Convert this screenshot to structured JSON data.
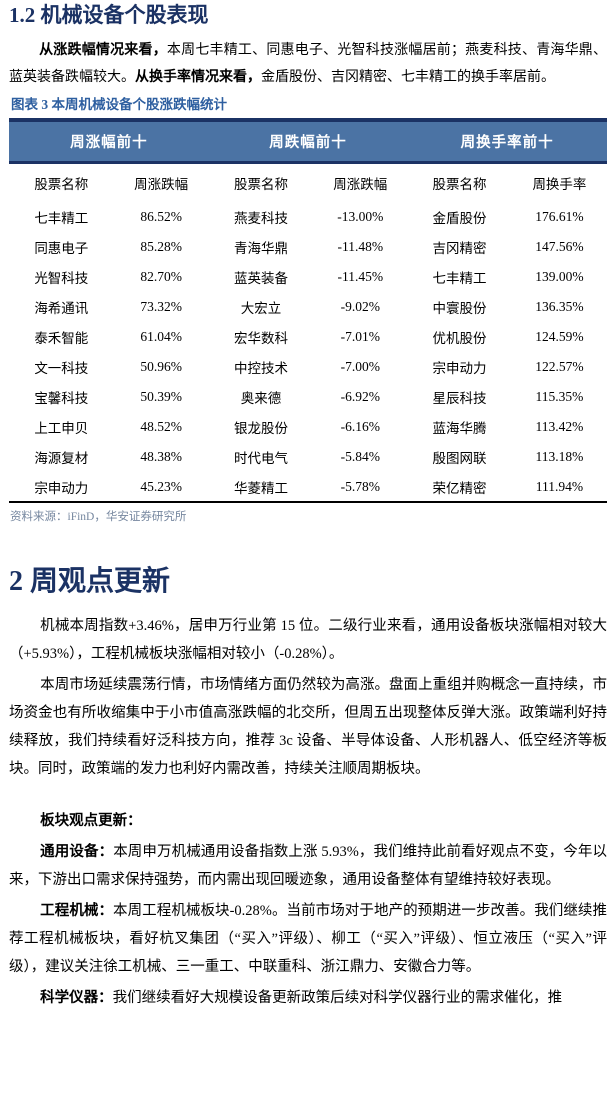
{
  "colors": {
    "heading_navy": "#1b3264",
    "table_header_bg": "#4b73a4",
    "table_header_text": "#ffffff",
    "caption_blue": "#2e5fa0",
    "source_text": "#76879f",
    "body_text": "#000000"
  },
  "section1": {
    "heading": "1.2 机械设备个股表现",
    "para": {
      "bold1": "从涨跌幅情况来看，",
      "text1": "本周七丰精工、同惠电子、光智科技涨幅居前；燕麦科技、青海华鼎、蓝英装备跌幅较大。",
      "bold2": "从换手率情况来看，",
      "text2": "金盾股份、吉冈精密、七丰精工的换手率居前。"
    }
  },
  "figure": {
    "caption": "图表 3 本周机械设备个股涨跌幅统计",
    "source": "资料来源：iFinD，华安证券研究所"
  },
  "table": {
    "group_headers": [
      "周涨幅前十",
      "周跌幅前十",
      "周换手率前十"
    ],
    "col_headers": [
      "股票名称",
      "周涨跌幅",
      "股票名称",
      "周涨跌幅",
      "股票名称",
      "周换手率"
    ],
    "rows": [
      [
        "七丰精工",
        "86.52%",
        "燕麦科技",
        "-13.00%",
        "金盾股份",
        "176.61%"
      ],
      [
        "同惠电子",
        "85.28%",
        "青海华鼎",
        "-11.48%",
        "吉冈精密",
        "147.56%"
      ],
      [
        "光智科技",
        "82.70%",
        "蓝英装备",
        "-11.45%",
        "七丰精工",
        "139.00%"
      ],
      [
        "海希通讯",
        "73.32%",
        "大宏立",
        "-9.02%",
        "中寰股份",
        "136.35%"
      ],
      [
        "泰禾智能",
        "61.04%",
        "宏华数科",
        "-7.01%",
        "优机股份",
        "124.59%"
      ],
      [
        "文一科技",
        "50.96%",
        "中控技术",
        "-7.00%",
        "宗申动力",
        "122.57%"
      ],
      [
        "宝馨科技",
        "50.39%",
        "奥来德",
        "-6.92%",
        "星辰科技",
        "115.35%"
      ],
      [
        "上工申贝",
        "48.52%",
        "银龙股份",
        "-6.16%",
        "蓝海华腾",
        "113.42%"
      ],
      [
        "海源复材",
        "48.38%",
        "时代电气",
        "-5.84%",
        "殷图网联",
        "113.18%"
      ],
      [
        "宗申动力",
        "45.23%",
        "华菱精工",
        "-5.78%",
        "荣亿精密",
        "111.94%"
      ]
    ]
  },
  "section2": {
    "heading": "2 周观点更新",
    "p1": "机械本周指数+3.46%，居申万行业第 15 位。二级行业来看，通用设备板块涨幅相对较大（+5.93%），工程机械板块涨幅相对较小（-0.28%）。",
    "p2": "本周市场延续震荡行情，市场情绪方面仍然较为高涨。盘面上重组并购概念一直持续，市场资金也有所收缩集中于小市值高涨跌幅的北交所，但周五出现整体反弹大涨。政策端利好持续释放，我们持续看好泛科技方向，推荐 3c 设备、半导体设备、人形机器人、低空经济等板块。同时，政策端的发力也利好内需改善，持续关注顺周期板块。",
    "subhead": "板块观点更新：",
    "general_equipment": {
      "lead": "通用设备：",
      "text": "本周申万机械通用设备指数上涨 5.93%，我们维持此前看好观点不变，今年以来，下游出口需求保持强势，而内需出现回暖迹象，通用设备整体有望维持较好表现。"
    },
    "construction_machinery": {
      "lead": "工程机械：",
      "text": "本周工程机械板块-0.28%。当前市场对于地产的预期进一步改善。我们继续推荐工程机械板块，看好杭叉集团（“买入”评级）、柳工（“买入”评级）、恒立液压（“买入”评级），建议关注徐工机械、三一重工、中联重科、浙江鼎力、安徽合力等。"
    },
    "scientific_instruments": {
      "lead": "科学仪器：",
      "text": "我们继续看好大规模设备更新政策后续对科学仪器行业的需求催化，推"
    }
  }
}
